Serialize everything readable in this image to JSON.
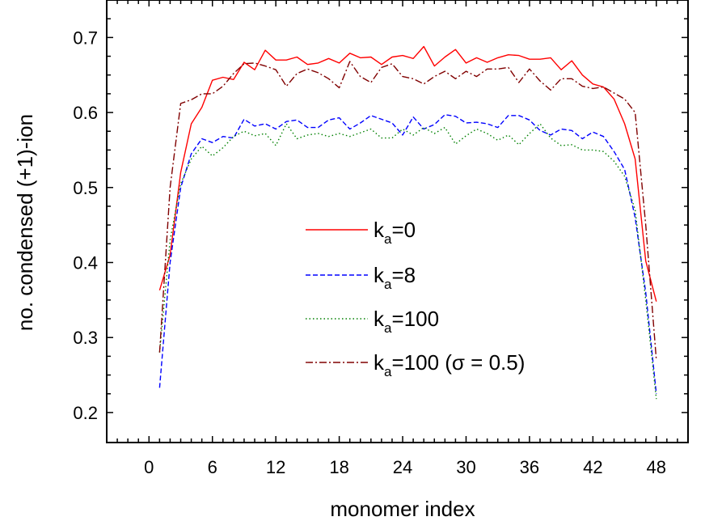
{
  "chart_data": {
    "type": "line",
    "xlabel": "monomer index",
    "ylabel": "no. condensed (+1)-ion",
    "xlim": [
      -4,
      51
    ],
    "ylim": [
      0.16,
      0.75
    ],
    "xticks": [
      0,
      6,
      12,
      18,
      24,
      30,
      36,
      42,
      48
    ],
    "xtick_labels": [
      "0",
      "6",
      "12",
      "18",
      "24",
      "30",
      "36",
      "42",
      "48"
    ],
    "yticks": [
      0.2,
      0.3,
      0.4,
      0.5,
      0.6,
      0.7
    ],
    "ytick_labels": [
      "0.2",
      "0.3",
      "0.4",
      "0.5",
      "0.6",
      "0.7"
    ],
    "grid": false,
    "legend_position": "center",
    "x": [
      1,
      2,
      3,
      4,
      5,
      6,
      7,
      8,
      9,
      10,
      11,
      12,
      13,
      14,
      15,
      16,
      17,
      18,
      19,
      20,
      21,
      22,
      23,
      24,
      25,
      26,
      27,
      28,
      29,
      30,
      31,
      32,
      33,
      34,
      35,
      36,
      37,
      38,
      39,
      40,
      41,
      42,
      43,
      44,
      45,
      46,
      47,
      48
    ],
    "series": [
      {
        "name": "k",
        "subscript": "a",
        "suffix": "=0",
        "color": "#ff0000",
        "dash": "solid",
        "values": [
          0.363,
          0.41,
          0.52,
          0.585,
          0.607,
          0.643,
          0.647,
          0.644,
          0.667,
          0.657,
          0.683,
          0.67,
          0.67,
          0.674,
          0.664,
          0.666,
          0.672,
          0.666,
          0.679,
          0.673,
          0.674,
          0.664,
          0.674,
          0.676,
          0.672,
          0.688,
          0.662,
          0.674,
          0.684,
          0.666,
          0.673,
          0.667,
          0.673,
          0.677,
          0.676,
          0.671,
          0.671,
          0.673,
          0.657,
          0.669,
          0.65,
          0.638,
          0.634,
          0.618,
          0.585,
          0.538,
          0.402,
          0.348
        ]
      },
      {
        "name": "k",
        "subscript": "a",
        "suffix": "=8",
        "color": "#0000ff",
        "dash": "dashed",
        "values": [
          0.233,
          0.4,
          0.5,
          0.545,
          0.565,
          0.56,
          0.568,
          0.566,
          0.591,
          0.582,
          0.585,
          0.578,
          0.588,
          0.59,
          0.58,
          0.58,
          0.59,
          0.593,
          0.578,
          0.586,
          0.596,
          0.591,
          0.586,
          0.57,
          0.594,
          0.578,
          0.584,
          0.597,
          0.595,
          0.586,
          0.587,
          0.585,
          0.58,
          0.596,
          0.596,
          0.59,
          0.576,
          0.57,
          0.578,
          0.576,
          0.565,
          0.574,
          0.568,
          0.548,
          0.524,
          0.46,
          0.36,
          0.225
        ]
      },
      {
        "name": "k",
        "subscript": "a",
        "suffix": "=100",
        "color": "#008000",
        "dash": "dotted",
        "values": [
          0.28,
          0.43,
          0.505,
          0.538,
          0.555,
          0.542,
          0.553,
          0.568,
          0.575,
          0.569,
          0.572,
          0.556,
          0.585,
          0.565,
          0.57,
          0.572,
          0.568,
          0.572,
          0.568,
          0.573,
          0.578,
          0.566,
          0.566,
          0.578,
          0.57,
          0.58,
          0.572,
          0.58,
          0.558,
          0.569,
          0.578,
          0.572,
          0.563,
          0.57,
          0.557,
          0.572,
          0.585,
          0.566,
          0.556,
          0.557,
          0.55,
          0.55,
          0.548,
          0.535,
          0.515,
          0.47,
          0.35,
          0.218
        ]
      },
      {
        "name": "k",
        "subscript": "a",
        "suffix": "=100 (σ = 0.5)",
        "color": "#800000",
        "dash": "dashdot",
        "values": [
          0.28,
          0.5,
          0.612,
          0.617,
          0.625,
          0.625,
          0.635,
          0.652,
          0.665,
          0.666,
          0.662,
          0.657,
          0.635,
          0.652,
          0.658,
          0.653,
          0.645,
          0.633,
          0.668,
          0.648,
          0.64,
          0.66,
          0.665,
          0.648,
          0.645,
          0.638,
          0.648,
          0.655,
          0.645,
          0.655,
          0.648,
          0.658,
          0.658,
          0.66,
          0.64,
          0.658,
          0.642,
          0.63,
          0.645,
          0.645,
          0.635,
          0.632,
          0.634,
          0.626,
          0.618,
          0.6,
          0.45,
          0.27
        ]
      }
    ]
  }
}
